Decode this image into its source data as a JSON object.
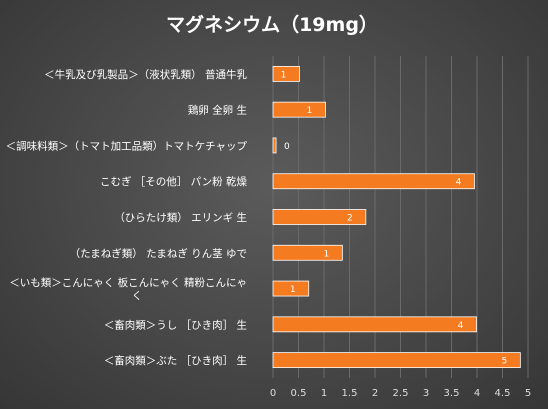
{
  "chart_data": {
    "type": "bar",
    "orientation": "horizontal",
    "title": "マグネシウム（19mg）",
    "categories": [
      [
        "＜牛乳及び乳製品＞（液状乳類） 普通牛乳"
      ],
      [
        "鶏卵 全卵 生"
      ],
      [
        "＜調味料類＞（トマト加工品類）トマトケチャップ"
      ],
      [
        "こむぎ ［その他］ パン粉 乾燥"
      ],
      [
        "（ひらたけ類） エリンギ 生"
      ],
      [
        "（たまねぎ類） たまねぎ りん茎 ゆで"
      ],
      [
        "＜いも類＞こんにゃく 板こんにゃく 精粉こんにゃ",
        "く"
      ],
      [
        "＜畜肉類＞うし ［ひき肉］ 生"
      ],
      [
        "＜畜肉類＞ぶた ［ひき肉］ 生"
      ]
    ],
    "values": [
      1,
      1,
      0,
      4,
      2,
      1,
      1,
      4,
      5
    ],
    "bar_values_exact": [
      0.52,
      1.03,
      0.06,
      3.95,
      1.82,
      1.36,
      0.7,
      3.99,
      4.85
    ],
    "xlim": [
      0,
      5
    ],
    "xticks": [
      "0",
      "0.5",
      "1",
      "1.5",
      "2",
      "2.5",
      "3",
      "3.5",
      "4",
      "4.5",
      "5"
    ],
    "grid": true,
    "colors": {
      "bar": "#f47b20",
      "bar_edge": "#ffffff",
      "grid": "#6a6a6a",
      "background": "#474747"
    }
  }
}
